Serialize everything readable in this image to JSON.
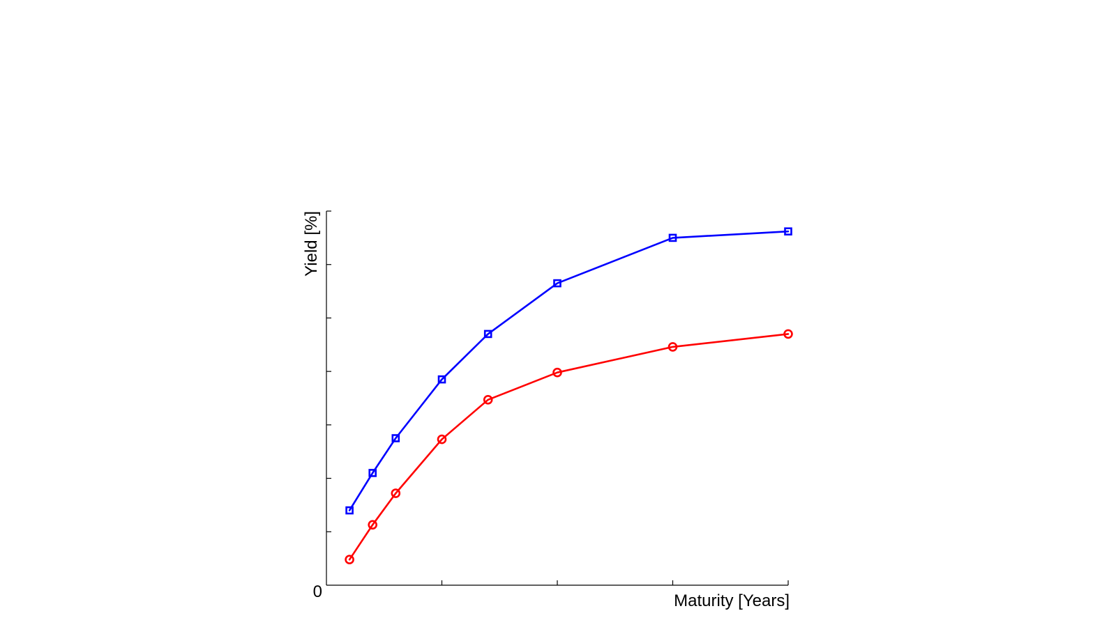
{
  "chart_data": {
    "type": "line",
    "title": "",
    "xlabel": "Maturity [Years]",
    "ylabel": "Yield [%]",
    "x": [
      1,
      2,
      3,
      5,
      7,
      10,
      15,
      20
    ],
    "xlim": [
      0,
      20
    ],
    "ylim": [
      0,
      7
    ],
    "x_ticks": [
      0,
      5,
      10,
      15,
      20
    ],
    "y_ticks": [
      0,
      1,
      2,
      3,
      4,
      5,
      6,
      7
    ],
    "y_tick_labels": [
      {
        "value": 0,
        "label": "0"
      }
    ],
    "grid": false,
    "legend": "none",
    "series": [
      {
        "values": [
          1.4,
          2.1,
          2.75,
          3.85,
          4.7,
          5.65,
          6.5,
          6.62
        ],
        "color": "#0000ff",
        "marker": "square"
      },
      {
        "values": [
          0.48,
          1.13,
          1.72,
          2.73,
          3.47,
          3.98,
          4.46,
          4.7
        ],
        "color": "#ff0000",
        "marker": "circle"
      }
    ]
  }
}
